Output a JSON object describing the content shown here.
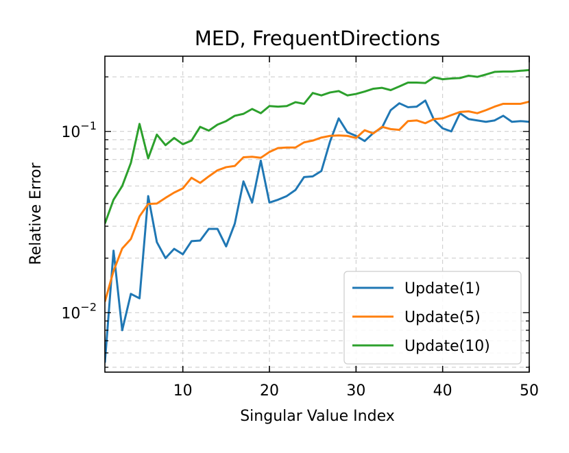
{
  "chart_data": {
    "type": "line",
    "title": "MED, FrequentDirections",
    "xlabel": "Singular Value Index",
    "ylabel": "Relative Error",
    "xlim": [
      1,
      50
    ],
    "ylim": [
      0.0047,
      0.26
    ],
    "yscale": "log",
    "xticks": [
      10,
      20,
      30,
      40,
      50
    ],
    "yticks": [
      {
        "value": 0.01,
        "base": "10",
        "exp": "−2"
      },
      {
        "value": 0.1,
        "base": "10",
        "exp": "−1"
      }
    ],
    "grid": true,
    "legend_position": "lower-right",
    "x": [
      1,
      2,
      3,
      4,
      5,
      6,
      7,
      8,
      9,
      10,
      11,
      12,
      13,
      14,
      15,
      16,
      17,
      18,
      19,
      20,
      21,
      22,
      23,
      24,
      25,
      26,
      27,
      28,
      29,
      30,
      31,
      32,
      33,
      34,
      35,
      36,
      37,
      38,
      39,
      40,
      41,
      42,
      43,
      44,
      45,
      46,
      47,
      48,
      49,
      50
    ],
    "series": [
      {
        "name": "Update(1)",
        "color": "#1f77b4",
        "values": [
          0.0053,
          0.022,
          0.008,
          0.0127,
          0.012,
          0.044,
          0.0245,
          0.02,
          0.0225,
          0.021,
          0.0248,
          0.025,
          0.029,
          0.029,
          0.0232,
          0.031,
          0.053,
          0.0405,
          0.069,
          0.0405,
          0.042,
          0.044,
          0.0475,
          0.056,
          0.0565,
          0.0605,
          0.088,
          0.118,
          0.099,
          0.0945,
          0.0885,
          0.098,
          0.105,
          0.131,
          0.143,
          0.136,
          0.137,
          0.148,
          0.116,
          0.104,
          0.1,
          0.126,
          0.117,
          0.115,
          0.113,
          0.115,
          0.122,
          0.113,
          0.114,
          0.113
        ]
      },
      {
        "name": "Update(5)",
        "color": "#ff7f0e",
        "values": [
          0.0115,
          0.017,
          0.0226,
          0.0255,
          0.034,
          0.0398,
          0.04,
          0.043,
          0.046,
          0.0485,
          0.0555,
          0.052,
          0.0565,
          0.061,
          0.0635,
          0.0645,
          0.072,
          0.0725,
          0.0715,
          0.077,
          0.081,
          0.0815,
          0.0815,
          0.087,
          0.089,
          0.0925,
          0.0945,
          0.095,
          0.0945,
          0.092,
          0.1015,
          0.0975,
          0.106,
          0.103,
          0.102,
          0.114,
          0.115,
          0.111,
          0.117,
          0.118,
          0.123,
          0.128,
          0.129,
          0.126,
          0.131,
          0.137,
          0.142,
          0.142,
          0.142,
          0.146
        ]
      },
      {
        "name": "Update(10)",
        "color": "#2ca02c",
        "values": [
          0.031,
          0.042,
          0.05,
          0.067,
          0.11,
          0.071,
          0.096,
          0.084,
          0.092,
          0.085,
          0.089,
          0.106,
          0.101,
          0.109,
          0.114,
          0.122,
          0.125,
          0.133,
          0.126,
          0.138,
          0.137,
          0.138,
          0.145,
          0.142,
          0.163,
          0.158,
          0.164,
          0.167,
          0.158,
          0.161,
          0.166,
          0.172,
          0.174,
          0.169,
          0.177,
          0.186,
          0.186,
          0.185,
          0.199,
          0.194,
          0.196,
          0.197,
          0.203,
          0.2,
          0.206,
          0.213,
          0.214,
          0.214,
          0.216,
          0.218
        ]
      }
    ]
  }
}
